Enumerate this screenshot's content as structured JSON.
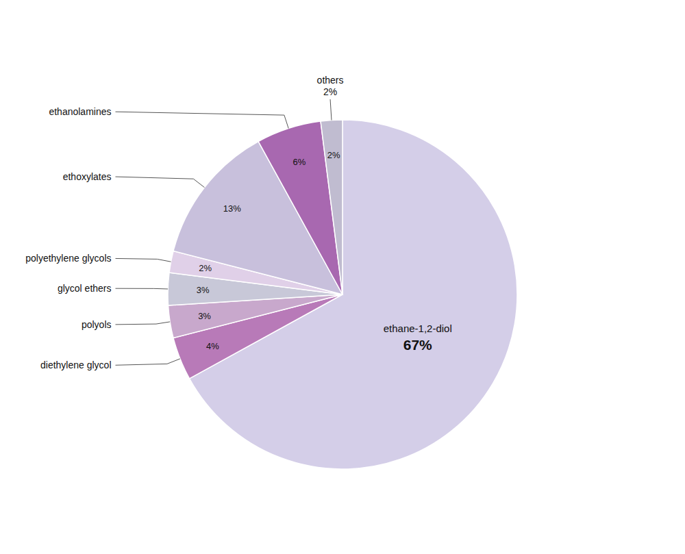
{
  "chart_data": {
    "type": "pie",
    "categories": [
      "ethane-1,2-diol",
      "diethylene glycol",
      "polyols",
      "glycol ethers",
      "polyethylene glycols",
      "ethoxylates",
      "ethanolamines",
      "others"
    ],
    "values": [
      67,
      4,
      3,
      3,
      2,
      13,
      6,
      2
    ],
    "value_labels": [
      "67%",
      "4%",
      "3%",
      "3%",
      "2%",
      "13%",
      "6%",
      "2%"
    ],
    "colors": [
      "#d4cee8",
      "#b87ab8",
      "#c8a8cc",
      "#c8c8d8",
      "#e0d0e8",
      "#c8c0dc",
      "#a868b0",
      "#c0bcd0"
    ],
    "data_labels": true
  }
}
